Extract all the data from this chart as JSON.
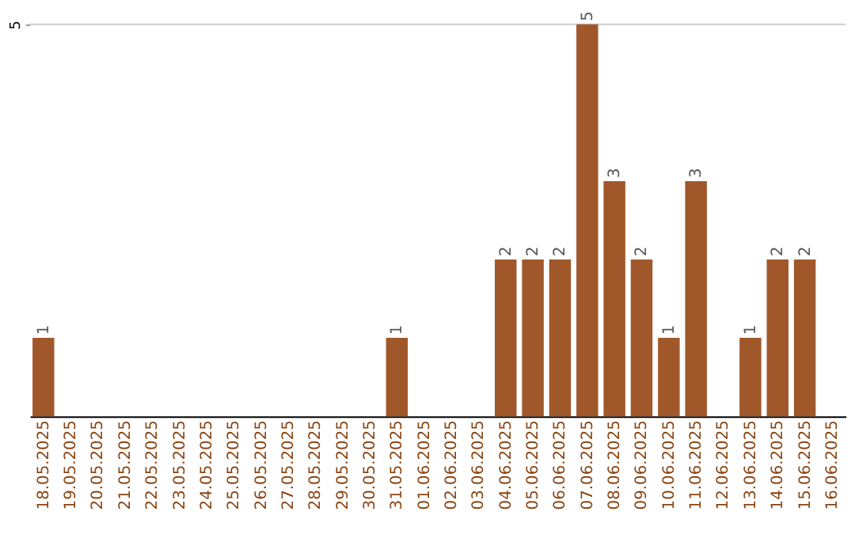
{
  "chart_data": {
    "type": "bar",
    "categories": [
      "18.05.2025",
      "19.05.2025",
      "20.05.2025",
      "21.05.2025",
      "22.05.2025",
      "23.05.2025",
      "24.05.2025",
      "25.05.2025",
      "26.05.2025",
      "27.05.2025",
      "28.05.2025",
      "29.05.2025",
      "30.05.2025",
      "31.05.2025",
      "01.06.2025",
      "02.06.2025",
      "03.06.2025",
      "04.06.2025",
      "05.06.2025",
      "06.06.2025",
      "07.06.2025",
      "08.06.2025",
      "09.06.2025",
      "10.06.2025",
      "11.06.2025",
      "12.06.2025",
      "13.06.2025",
      "14.06.2025",
      "15.06.2025",
      "16.06.2025"
    ],
    "values": [
      1,
      0,
      0,
      0,
      0,
      0,
      0,
      0,
      0,
      0,
      0,
      0,
      0,
      1,
      0,
      0,
      0,
      2,
      2,
      2,
      5,
      3,
      2,
      1,
      3,
      0,
      1,
      2,
      2,
      0
    ],
    "value_labels": [
      "1",
      null,
      null,
      null,
      null,
      null,
      null,
      null,
      null,
      null,
      null,
      null,
      null,
      "1",
      null,
      null,
      null,
      "2",
      "2",
      "2",
      "5",
      "3",
      "2",
      "1",
      "3",
      null,
      "1",
      "2",
      "2",
      null
    ],
    "color": "#a0582a",
    "ylim": [
      0,
      5
    ],
    "yticks": [
      5
    ],
    "ref_lines": [
      {
        "axis": "y",
        "value": 5,
        "color": "#cccccc"
      }
    ]
  }
}
